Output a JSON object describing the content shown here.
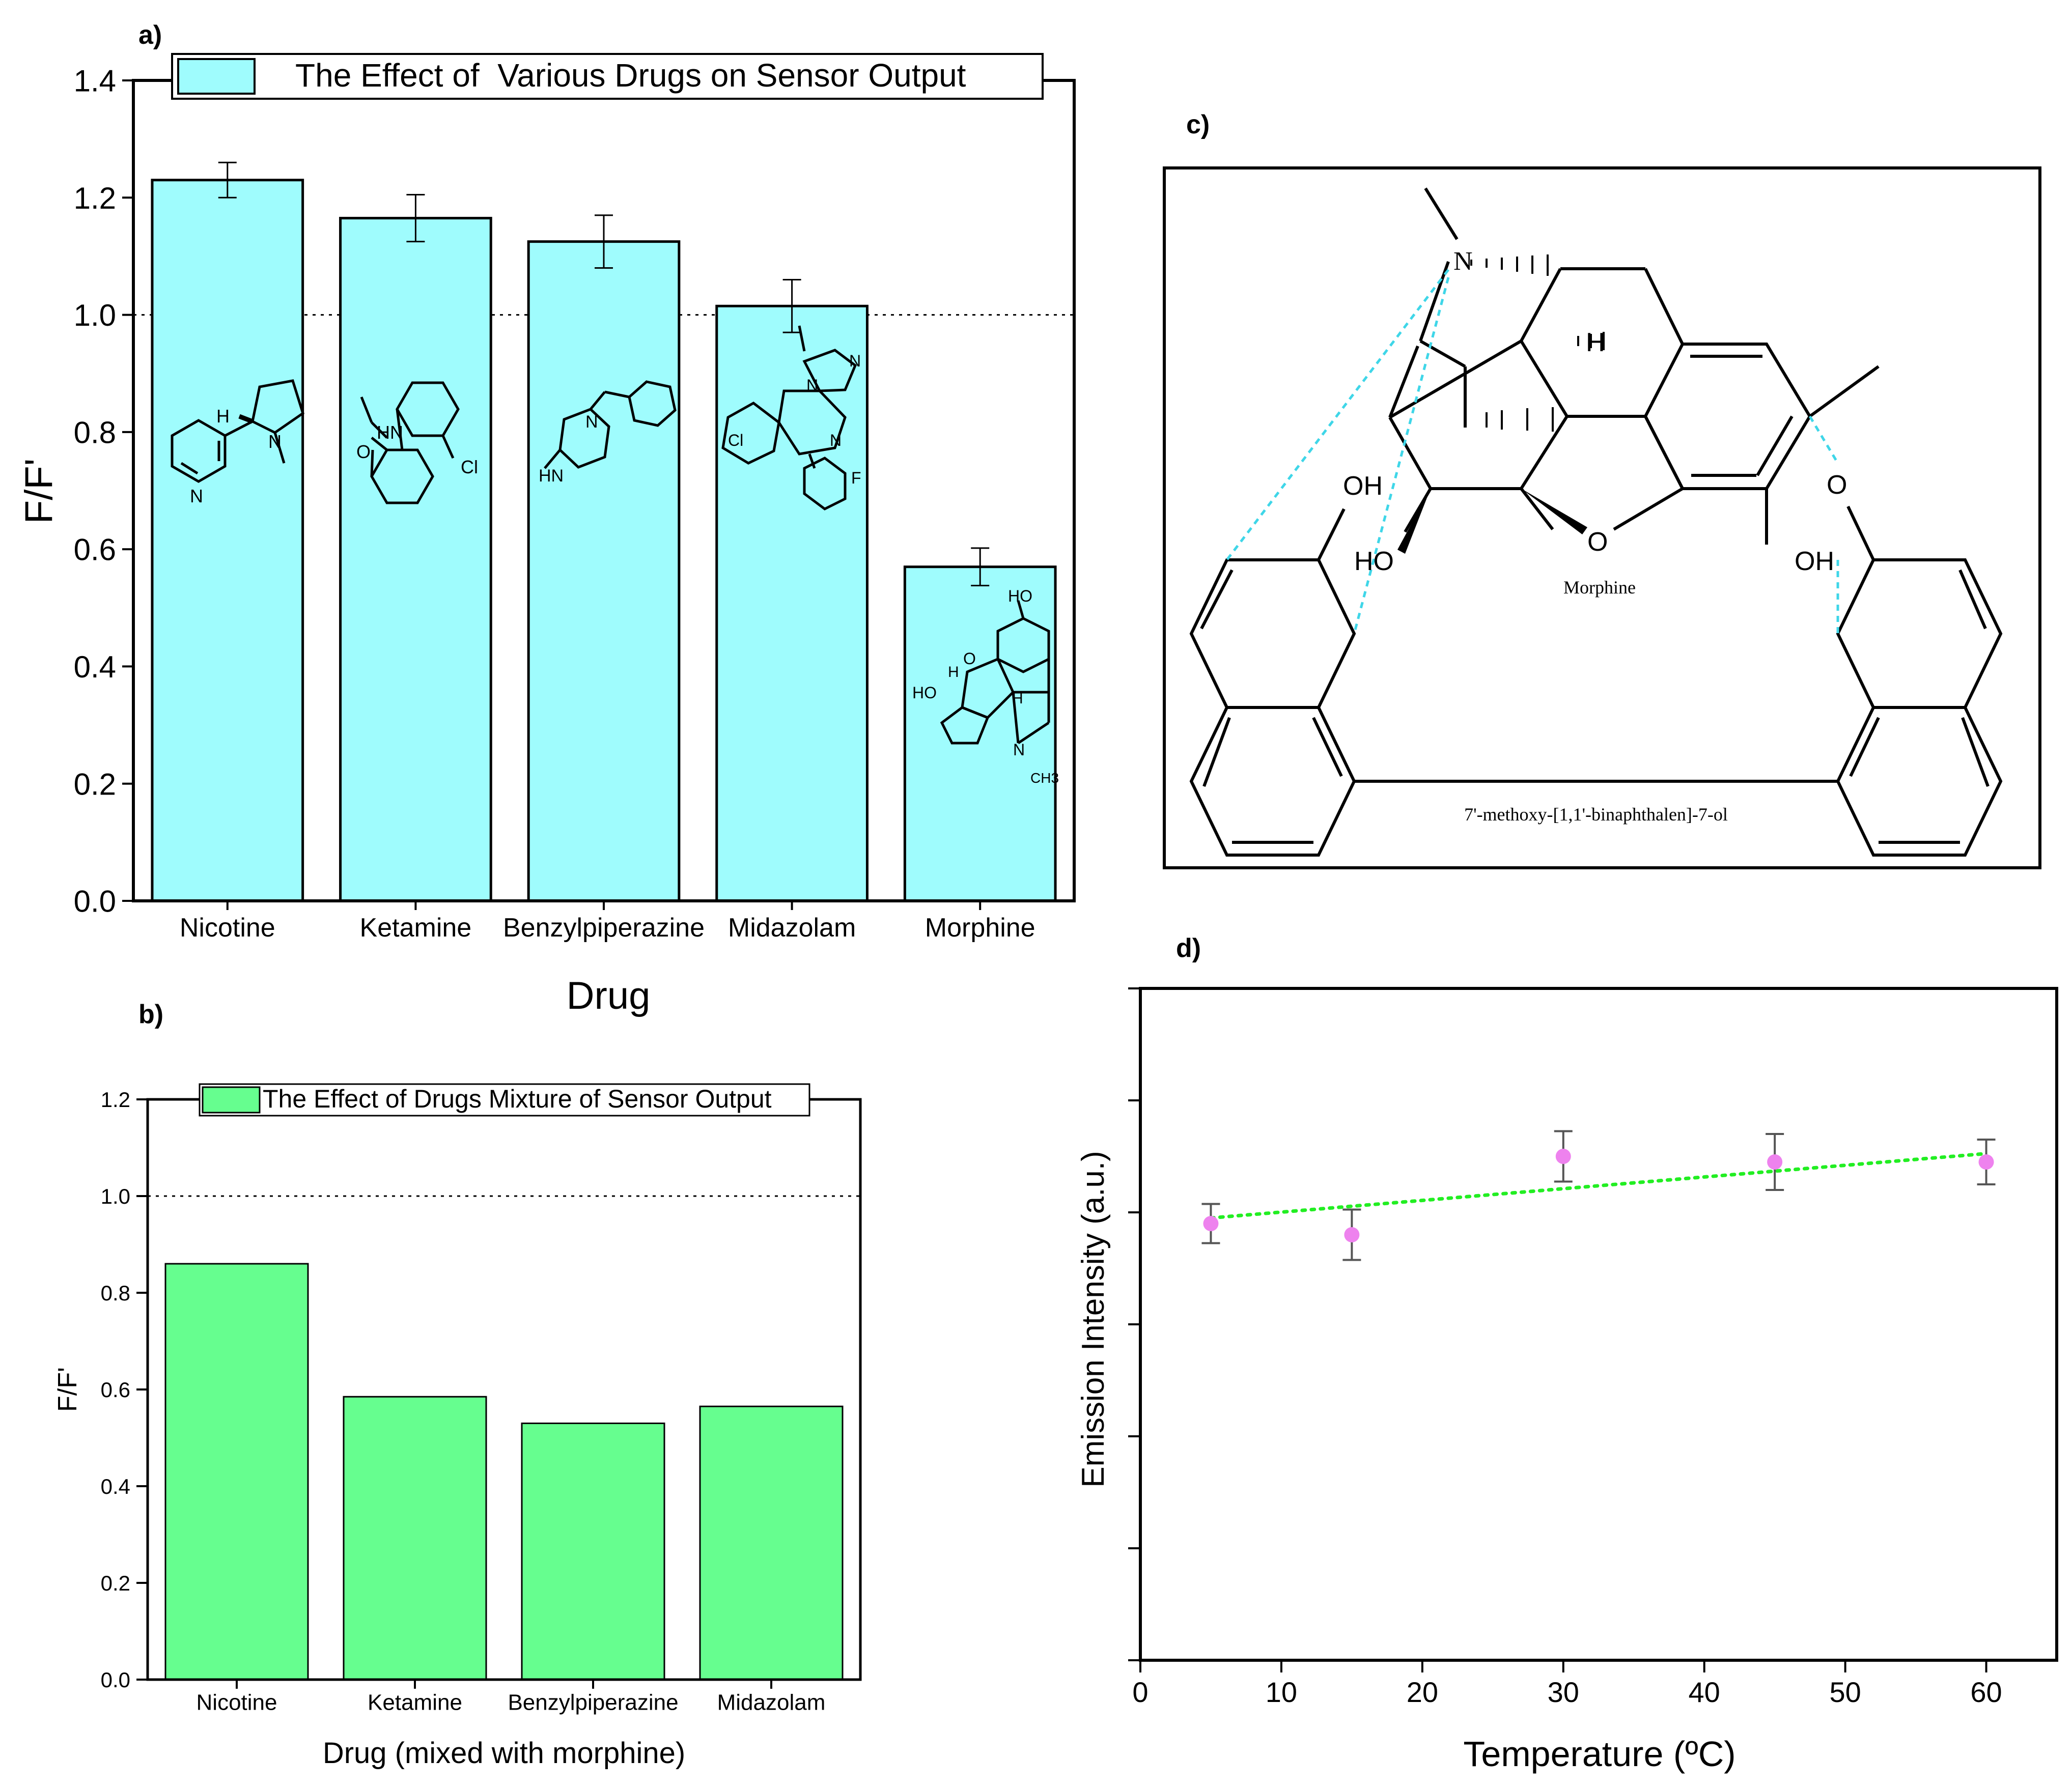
{
  "panels": {
    "a": {
      "label": "a)"
    },
    "b": {
      "label": "b)"
    },
    "c": {
      "label": "c)",
      "morphine_label": "Morphine",
      "binaphthol_label": "7'-methoxy-[1,1'-binaphthalen]-7-ol",
      "atoms": {
        "N": "N",
        "H": "H",
        "O": "O",
        "OH": "OH",
        "HO": "HO"
      }
    },
    "d": {
      "label": "d)"
    }
  },
  "structure_labels": {
    "nicotine": {
      "H": "H",
      "N_pyrrolidine": "N",
      "N_pyridine": "N"
    },
    "ketamine": {
      "HN": "HN",
      "O": "O",
      "Cl": "Cl"
    },
    "benzylpiperazine": {
      "HN": "HN",
      "N": "N"
    },
    "midazolam": {
      "N1": "N",
      "N2": "N",
      "N3": "N",
      "Cl": "Cl",
      "F": "F"
    },
    "morphine_small": {
      "HO1": "HO",
      "HO2": "HO",
      "O": "O",
      "H1": "H",
      "H2": "H",
      "N": "N",
      "CH3": "CH3"
    }
  },
  "colors": {
    "cyan": "#9ffcfd",
    "green": "#66fe8f",
    "magenta": "#ee82ee",
    "dots_green": "#22ee22",
    "bond_cyan": "#3fd6e8"
  },
  "chart_data": [
    {
      "type": "bar",
      "title": "The Effect of  Various Drugs on Sensor Output",
      "categories": [
        "Nicotine",
        "Ketamine",
        "Benzylpiperazine",
        "Midazolam",
        "Morphine"
      ],
      "values": [
        1.23,
        1.165,
        1.125,
        1.015,
        0.57
      ],
      "errors": [
        0.03,
        0.04,
        0.045,
        0.045,
        0.032
      ],
      "xlabel": "Drug",
      "ylabel": "F/F'",
      "ylim": [
        0,
        1.4
      ],
      "yticks": [
        "0.0",
        "0.2",
        "0.4",
        "0.6",
        "0.8",
        "1.0",
        "1.2",
        "1.4"
      ],
      "reference_line": 1.0
    },
    {
      "type": "bar",
      "title": "The Effect of Drugs Mixture of Sensor Output",
      "categories": [
        "Nicotine",
        "Ketamine",
        "Benzylpiperazine",
        "Midazolam"
      ],
      "values": [
        0.86,
        0.585,
        0.53,
        0.565
      ],
      "xlabel": "Drug (mixed with morphine)",
      "ylabel": "F/F'",
      "ylim": [
        0,
        1.2
      ],
      "yticks": [
        "0.0",
        "0.2",
        "0.4",
        "0.6",
        "0.8",
        "1.0",
        "1.2"
      ],
      "reference_line": 1.0
    },
    {
      "type": "scatter",
      "title": "",
      "x": [
        5,
        15,
        30,
        45,
        60
      ],
      "y": [
        0.98,
        0.96,
        1.1,
        1.09,
        1.09
      ],
      "errors": [
        0.035,
        0.045,
        0.045,
        0.05,
        0.04
      ],
      "trendline": {
        "x": [
          5,
          60
        ],
        "y": [
          0.99,
          1.105
        ]
      },
      "xlabel": "Temperature (ºC)",
      "ylabel": "Emission Intensity (a.u.)",
      "xlim": [
        0,
        65
      ],
      "ylim": [
        0.2,
        1.4
      ],
      "xticks": [
        "0",
        "10",
        "20",
        "30",
        "40",
        "50",
        "60"
      ]
    }
  ]
}
